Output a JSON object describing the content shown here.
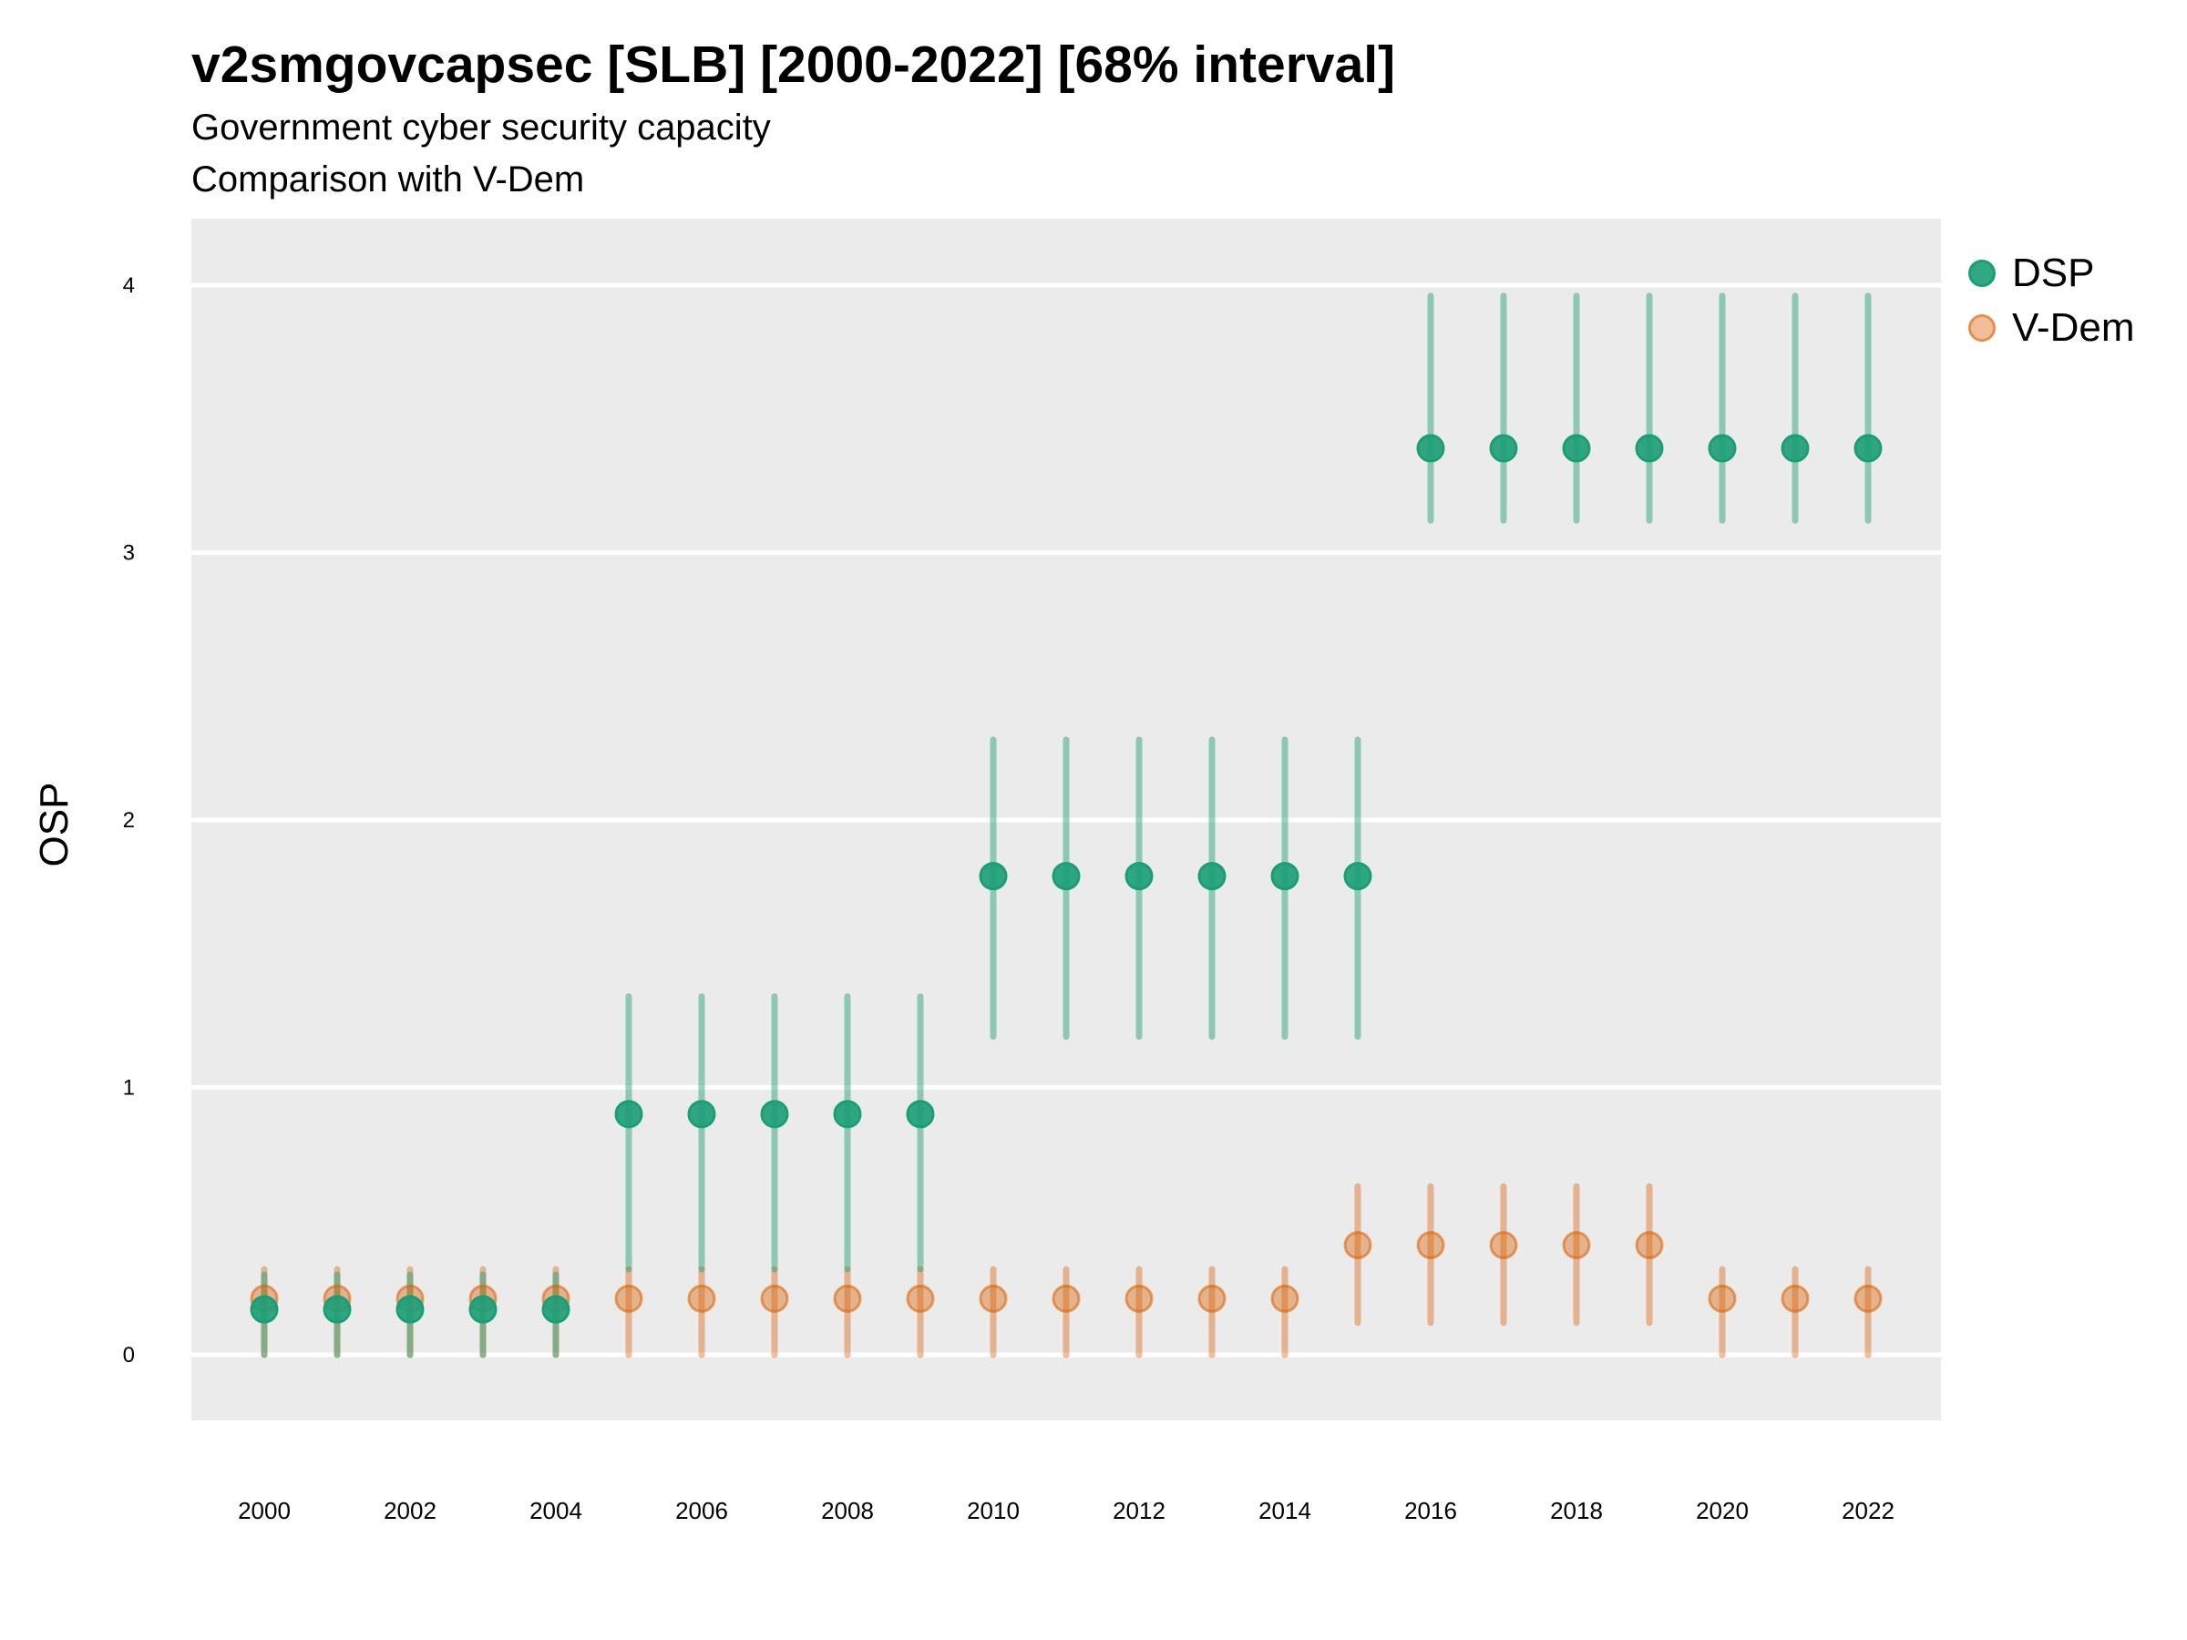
{
  "chart_data": {
    "type": "scatter",
    "title": "v2smgovcapsec [SLB] [2000-2022] [68% interval]",
    "subtitle_lines": [
      "Government cyber security capacity",
      "Comparison with V-Dem"
    ],
    "xlabel": "",
    "ylabel": "OSP",
    "ylim": [
      -0.25,
      4.25
    ],
    "xlim": [
      1999,
      2023
    ],
    "yticks": [
      0,
      1,
      2,
      3,
      4
    ],
    "xticks": [
      2000,
      2002,
      2004,
      2006,
      2008,
      2010,
      2012,
      2014,
      2016,
      2018,
      2020,
      2022
    ],
    "grid": true,
    "legend_position": "top-right",
    "x": [
      2000,
      2001,
      2002,
      2003,
      2004,
      2005,
      2006,
      2007,
      2008,
      2009,
      2010,
      2011,
      2012,
      2013,
      2014,
      2015,
      2016,
      2017,
      2018,
      2019,
      2020,
      2021,
      2022
    ],
    "series": [
      {
        "name": "DSP",
        "color": "#1b9e77",
        "values": [
          0.17,
          0.17,
          0.17,
          0.17,
          0.17,
          0.9,
          0.9,
          0.9,
          0.9,
          0.9,
          1.79,
          1.79,
          1.79,
          1.79,
          1.79,
          1.79,
          3.39,
          3.39,
          3.39,
          3.39,
          3.39,
          3.39,
          3.39
        ],
        "lower": [
          0.0,
          0.0,
          0.0,
          0.0,
          0.0,
          0.32,
          0.32,
          0.32,
          0.32,
          0.32,
          1.19,
          1.19,
          1.19,
          1.19,
          1.19,
          1.19,
          3.12,
          3.12,
          3.12,
          3.12,
          3.12,
          3.12,
          3.12
        ],
        "upper": [
          0.3,
          0.3,
          0.3,
          0.3,
          0.3,
          1.34,
          1.34,
          1.34,
          1.34,
          1.34,
          2.3,
          2.3,
          2.3,
          2.3,
          2.3,
          2.3,
          3.96,
          3.96,
          3.96,
          3.96,
          3.96,
          3.96,
          3.96
        ]
      },
      {
        "name": "V-Dem",
        "color": "#d95f02",
        "values": [
          0.21,
          0.21,
          0.21,
          0.21,
          0.21,
          0.21,
          0.21,
          0.21,
          0.21,
          0.21,
          0.21,
          0.21,
          0.21,
          0.21,
          0.21,
          0.41,
          0.41,
          0.41,
          0.41,
          0.41,
          0.21,
          0.21,
          0.21
        ],
        "lower": [
          0.0,
          0.0,
          0.0,
          0.0,
          0.0,
          0.0,
          0.0,
          0.0,
          0.0,
          0.0,
          0.0,
          0.0,
          0.0,
          0.0,
          0.0,
          0.12,
          0.12,
          0.12,
          0.12,
          0.12,
          0.0,
          0.0,
          0.0
        ],
        "upper": [
          0.32,
          0.32,
          0.32,
          0.32,
          0.32,
          0.32,
          0.32,
          0.32,
          0.32,
          0.32,
          0.32,
          0.32,
          0.32,
          0.32,
          0.32,
          0.63,
          0.63,
          0.63,
          0.63,
          0.63,
          0.32,
          0.32,
          0.32
        ]
      }
    ]
  }
}
